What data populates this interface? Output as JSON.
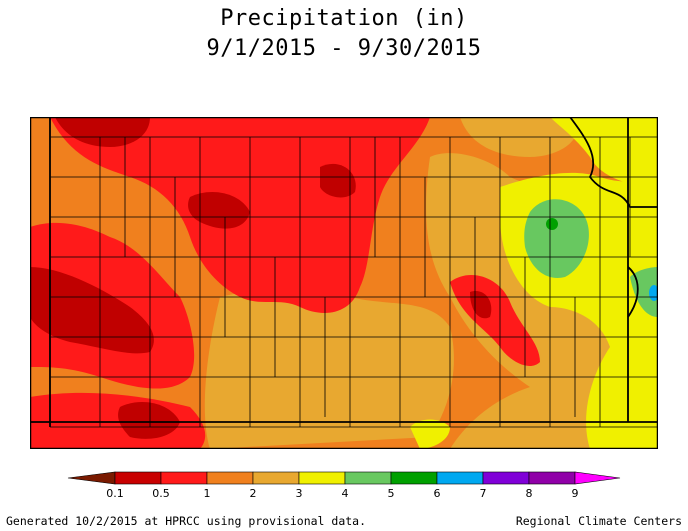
{
  "title_line1": "Precipitation (in)",
  "title_line2": "9/1/2015 - 9/30/2015",
  "footer_left": "Generated 10/2/2015 at HPRCC using provisional data.",
  "footer_right": "Regional Climate Centers",
  "legend": {
    "ticks": [
      "0.1",
      "0.5",
      "1",
      "2",
      "3",
      "4",
      "5",
      "6",
      "7",
      "8",
      "9"
    ],
    "colors": [
      "#7a1a00",
      "#c80000",
      "#ff1a1a",
      "#f0801e",
      "#e8a830",
      "#f0f000",
      "#68c860",
      "#00a000",
      "#00a8f0",
      "#8000d8",
      "#9000a8",
      "#ff00ff"
    ]
  },
  "palette": {
    "dark_red": "#c00000",
    "red": "#ff1a1a",
    "orange": "#f0801e",
    "light_orange": "#e8a830",
    "yellow": "#f0f000",
    "light_green": "#68c860",
    "green": "#00a000",
    "blue": "#00a8f0"
  }
}
